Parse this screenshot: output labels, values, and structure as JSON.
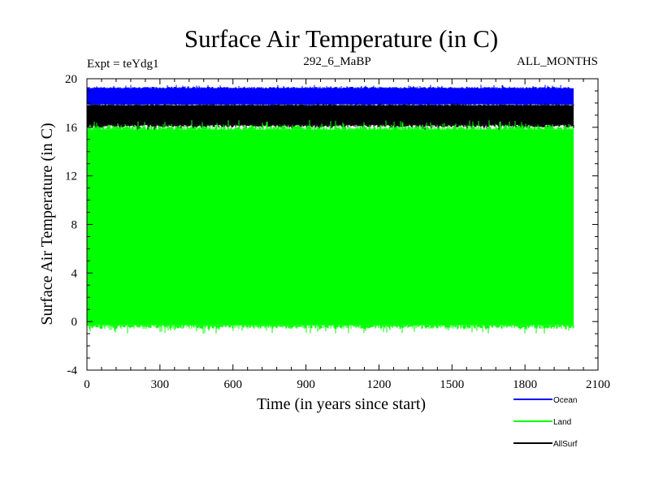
{
  "chart_data": {
    "type": "line",
    "title": "Surface Air Temperature (in C)",
    "annotations": {
      "left": "Expt = teYdg1",
      "center": "292_6_MaBP",
      "right": "ALL_MONTHS"
    },
    "xlabel": "Time (in years since start)",
    "ylabel": "Surface Air Temperature (in C)",
    "xlim": [
      0,
      2100
    ],
    "ylim": [
      -4,
      20
    ],
    "xticks": [
      0,
      300,
      600,
      900,
      1200,
      1500,
      1800,
      2100
    ],
    "yticks": [
      -4,
      0,
      4,
      8,
      12,
      16,
      20
    ],
    "x_range": [
      0,
      2000
    ],
    "series": [
      {
        "name": "Ocean",
        "color": "#0000ff",
        "band_min": 17.9,
        "band_max": 19.2,
        "spike_min": 17.7,
        "spike_max": 19.5
      },
      {
        "name": "AllSurf",
        "color": "#000000",
        "band_min": 16.2,
        "band_max": 17.8,
        "spike_min": 15.7,
        "spike_max": 18.0
      },
      {
        "name": "Land",
        "color": "#00ff00",
        "band_min": -0.3,
        "band_max": 15.8,
        "spike_min": -1.0,
        "spike_max": 16.6
      }
    ],
    "legend": [
      {
        "name": "Ocean",
        "color": "#0000ff"
      },
      {
        "name": "Land",
        "color": "#00ff00"
      },
      {
        "name": "AllSurf",
        "color": "#000000"
      }
    ],
    "legend_position": "bottom-right"
  }
}
